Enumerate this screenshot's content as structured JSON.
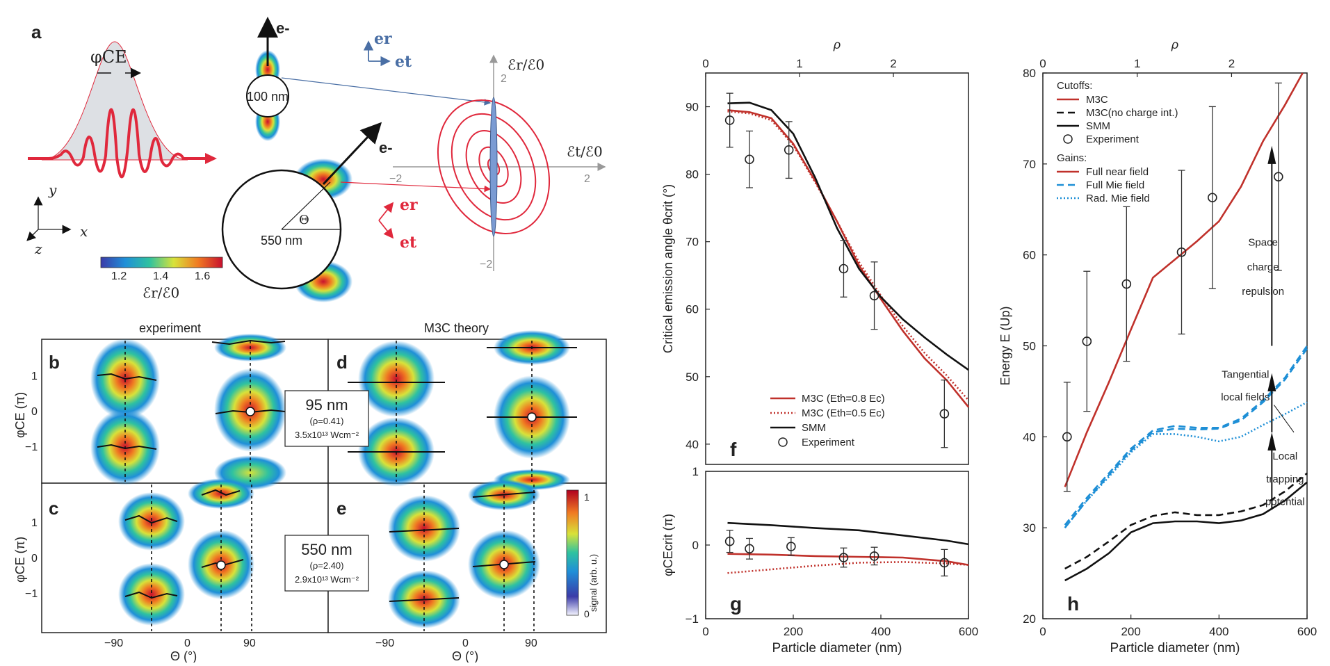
{
  "panel_a": {
    "label": "a",
    "phase_label": "φCE",
    "axis_y": "y",
    "axis_x": "x",
    "axis_z": "z",
    "electron": "e-",
    "small_sphere": "100 nm",
    "large_sphere": "550 nm",
    "theta_label": "Θ",
    "er": "er",
    "et": "et",
    "field_r": "ℰr/ℰ0",
    "field_t": "ℰt/ℰ0",
    "colorbar_ticks": [
      "1.2",
      "1.4",
      "1.6"
    ],
    "colorbar_label": "ℰr/ℰ0",
    "polar_ticks": {
      "y_top": "2",
      "y_bottom": "−2",
      "x_left": "−2",
      "x_right": "2"
    }
  },
  "heatmaps": {
    "title_left": "experiment",
    "title_right": "M3C theory",
    "panel_b": "b",
    "panel_c": "c",
    "panel_d": "d",
    "panel_e": "e",
    "ylabel": "φCE (π)",
    "yticks": [
      "1",
      "0",
      "−1"
    ],
    "xticks": [
      "−90",
      "0",
      "90"
    ],
    "xlabel": "Θ (°)",
    "box_95_size": "95 nm",
    "box_95_rho": "(ρ=0.41)",
    "box_95_int": "3.5x10¹³ Wcm⁻²",
    "box_550_size": "550 nm",
    "box_550_rho": "(ρ=2.40)",
    "box_550_int": "2.9x10¹³ Wcm⁻²",
    "cbar_label": "signal (arb. u.)",
    "cbar_top": "1",
    "cbar_bottom": "0"
  },
  "colors": {
    "red": "#c0312b",
    "blue": "#1e8fd6",
    "dark": "#111111",
    "axis": "#222222"
  },
  "chart_data": [
    {
      "type": "line",
      "id": "f",
      "panel_label": "f",
      "top_axis_label": "ρ",
      "top_ticks": [
        "0",
        "1",
        "2"
      ],
      "xlabel": "",
      "ylabel": "Critical emission angle θcrit (°)",
      "xlim": [
        0,
        600
      ],
      "ylim": [
        37,
        95
      ],
      "yticks": [
        40,
        50,
        60,
        70,
        80,
        90
      ],
      "series": [
        {
          "name": "M3C (Eth=0.8 Ec)",
          "color": "#c0312b",
          "dash": "solid",
          "x": [
            50,
            100,
            150,
            200,
            250,
            300,
            350,
            400,
            450,
            500,
            550,
            600
          ],
          "y": [
            89.5,
            89.2,
            88.3,
            84.5,
            79.0,
            73.0,
            66.5,
            61.5,
            56.8,
            52.7,
            49.5,
            45.5
          ]
        },
        {
          "name": "M3C (Eth=0.5 Ec)",
          "color": "#c0312b",
          "dash": "dotted",
          "x": [
            50,
            100,
            150,
            200,
            250,
            300,
            350,
            400,
            450,
            500,
            550,
            600
          ],
          "y": [
            89.3,
            89.0,
            88.0,
            84.3,
            78.8,
            73.0,
            67.0,
            62.0,
            57.5,
            53.5,
            50.2,
            46.5
          ]
        },
        {
          "name": "SMM",
          "color": "#111111",
          "dash": "solid",
          "x": [
            50,
            100,
            150,
            200,
            250,
            300,
            350,
            400,
            450,
            500,
            550,
            600
          ],
          "y": [
            90.5,
            90.6,
            89.5,
            86.0,
            79.5,
            72.0,
            66.0,
            61.8,
            58.5,
            55.8,
            53.3,
            51.0
          ]
        }
      ],
      "points": {
        "name": "Experiment",
        "x": [
          55,
          100,
          190,
          315,
          385,
          545
        ],
        "y": [
          88.0,
          82.2,
          83.6,
          66.0,
          62.0,
          44.5
        ],
        "err": [
          4,
          4.2,
          4.2,
          4.2,
          5,
          5
        ]
      },
      "legend": [
        "M3C (Eth=0.8 Ec)",
        "M3C (Eth=0.5 Ec)",
        "SMM",
        "Experiment"
      ]
    },
    {
      "type": "line",
      "id": "g",
      "panel_label": "g",
      "xlabel": "Particle diameter (nm)",
      "ylabel": "φCEcrit (π)",
      "xlim": [
        0,
        600
      ],
      "ylim": [
        -1,
        1
      ],
      "xticks": [
        0,
        200,
        400,
        600
      ],
      "yticks": [
        -1,
        0,
        1
      ],
      "series": [
        {
          "name": "SMM",
          "color": "#111111",
          "dash": "solid",
          "x": [
            50,
            150,
            250,
            350,
            450,
            550,
            600
          ],
          "y": [
            0.3,
            0.27,
            0.23,
            0.2,
            0.13,
            0.06,
            0.01
          ]
        },
        {
          "name": "M3C (Eth=0.8 Ec)",
          "color": "#c0312b",
          "dash": "solid",
          "x": [
            50,
            150,
            250,
            350,
            450,
            550,
            600
          ],
          "y": [
            -0.12,
            -0.13,
            -0.15,
            -0.16,
            -0.17,
            -0.22,
            -0.27
          ]
        },
        {
          "name": "M3C (Eth=0.5 Ec)",
          "color": "#c0312b",
          "dash": "dotted",
          "x": [
            50,
            150,
            250,
            350,
            450,
            550,
            600
          ],
          "y": [
            -0.38,
            -0.33,
            -0.28,
            -0.24,
            -0.23,
            -0.25,
            -0.27
          ]
        }
      ],
      "points": {
        "name": "Experiment",
        "x": [
          55,
          100,
          195,
          315,
          385,
          545
        ],
        "y": [
          0.05,
          -0.05,
          -0.02,
          -0.17,
          -0.15,
          -0.24
        ],
        "err": [
          0.15,
          0.14,
          0.12,
          0.13,
          0.12,
          0.18
        ]
      }
    },
    {
      "type": "line",
      "id": "h",
      "panel_label": "h",
      "top_axis_label": "ρ",
      "top_ticks": [
        "0",
        "1",
        "2"
      ],
      "xlabel": "Particle diameter (nm)",
      "ylabel": "Energy E (Up)",
      "xlim": [
        0,
        600
      ],
      "ylim": [
        20,
        80
      ],
      "xticks": [
        0,
        200,
        400,
        600
      ],
      "yticks": [
        20,
        30,
        40,
        50,
        60,
        70,
        80
      ],
      "legend_cutoffs_title": "Cutoffs:",
      "legend_gains_title": "Gains:",
      "legend": [
        "M3C",
        "M3C(no charge int.)",
        "SMM",
        "Experiment",
        "Full near field",
        "Full Mie field",
        "Rad. Mie field"
      ],
      "series": [
        {
          "name": "M3C",
          "color": "#c0312b",
          "dash": "solid",
          "x": [
            50,
            100,
            150,
            200,
            250,
            300,
            350,
            400,
            450,
            500,
            550,
            590
          ],
          "y": [
            34.5,
            40.5,
            46.0,
            51.8,
            57.5,
            59.5,
            61.5,
            63.7,
            67.5,
            72.5,
            76.5,
            80
          ]
        },
        {
          "name": "M3C(no charge int.)",
          "color": "#111111",
          "dash": "dashed",
          "x": [
            50,
            100,
            150,
            200,
            250,
            300,
            350,
            400,
            450,
            500,
            550,
            600
          ],
          "y": [
            25.5,
            26.8,
            28.5,
            30.3,
            31.3,
            31.7,
            31.4,
            31.4,
            31.8,
            32.5,
            34.0,
            36.0
          ]
        },
        {
          "name": "SMM",
          "color": "#111111",
          "dash": "solid",
          "x": [
            50,
            100,
            150,
            200,
            250,
            300,
            350,
            400,
            450,
            500,
            550,
            600
          ],
          "y": [
            24.2,
            25.5,
            27.2,
            29.5,
            30.5,
            30.7,
            30.7,
            30.5,
            30.8,
            31.5,
            33.0,
            35.0
          ]
        },
        {
          "name": "Full near field",
          "color": "#1e8fd6",
          "dash": "dashed",
          "x": [
            50,
            100,
            150,
            200,
            250,
            300,
            350,
            400,
            450,
            500,
            550,
            600
          ],
          "y": [
            30.3,
            33.3,
            36.0,
            38.7,
            40.7,
            41.2,
            41.0,
            41.0,
            42.0,
            44.0,
            46.5,
            50.0
          ]
        },
        {
          "name": "Full Mie field",
          "color": "#1e8fd6",
          "dash": "dashed",
          "x": [
            50,
            100,
            150,
            200,
            250,
            300,
            350,
            400,
            450,
            500,
            550,
            600
          ],
          "y": [
            30.0,
            33.0,
            35.8,
            38.5,
            40.5,
            40.9,
            40.8,
            40.9,
            41.8,
            43.8,
            46.3,
            49.7
          ]
        },
        {
          "name": "Rad. Mie field",
          "color": "#1e8fd6",
          "dash": "dotted",
          "x": [
            50,
            100,
            150,
            200,
            250,
            300,
            350,
            400,
            450,
            500,
            550,
            600
          ],
          "y": [
            30.0,
            33.0,
            35.6,
            38.3,
            40.3,
            40.3,
            40.0,
            39.5,
            40.0,
            41.3,
            42.5,
            43.8
          ]
        }
      ],
      "points": {
        "name": "Experiment",
        "x": [
          55,
          100,
          190,
          315,
          385,
          535
        ],
        "y": [
          40.0,
          50.5,
          56.8,
          60.3,
          66.3,
          68.6
        ],
        "err": [
          6,
          7.7,
          8.5,
          9,
          10,
          10.3
        ]
      },
      "annotations": [
        "Space",
        "charge",
        "repulsion",
        "Tangential",
        "local fields",
        "Local",
        "trapping",
        "potential"
      ]
    }
  ]
}
